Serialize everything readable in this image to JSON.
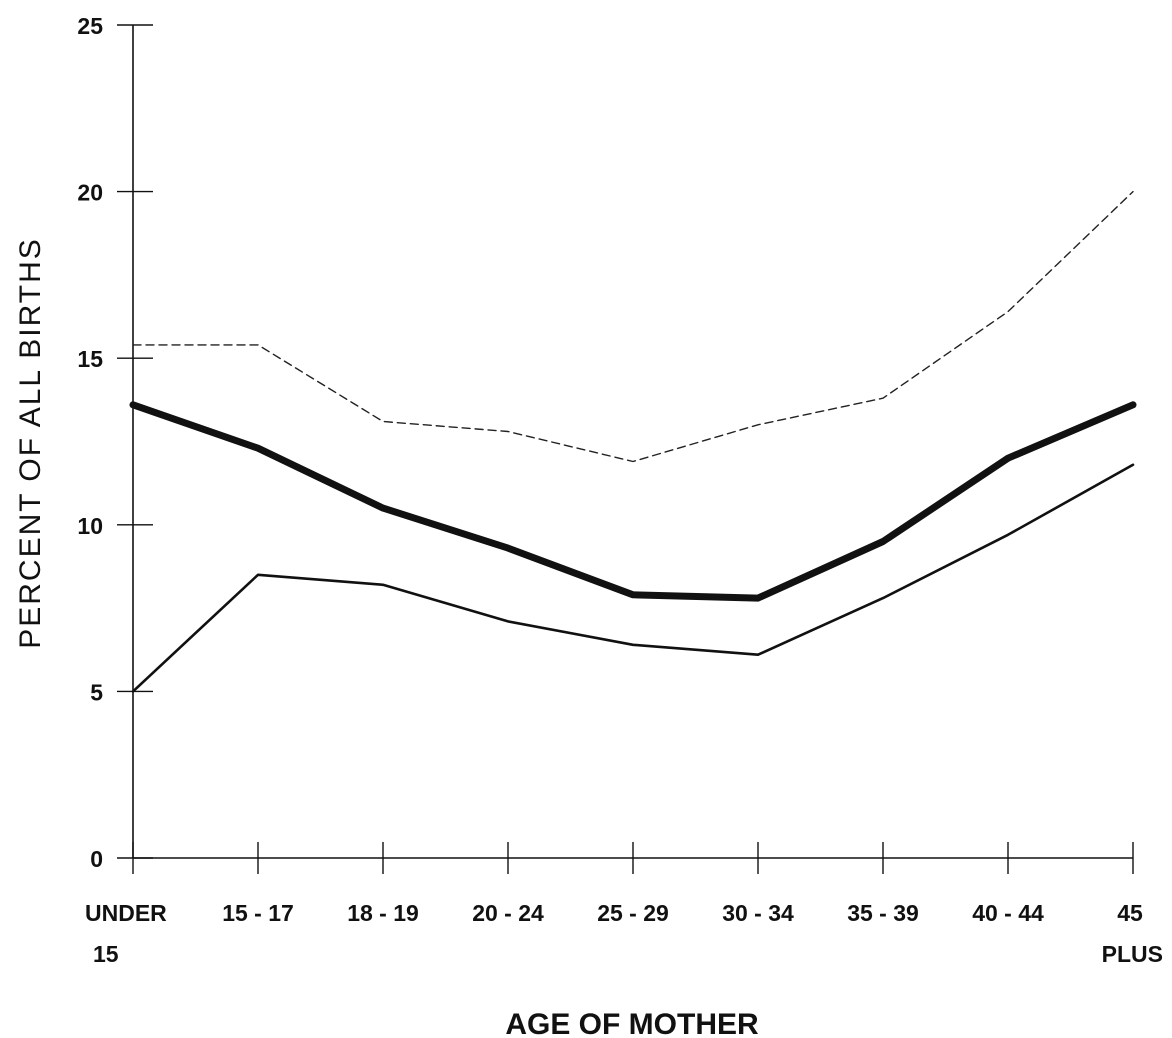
{
  "chart_data": {
    "type": "line",
    "title": "",
    "xlabel": "AGE OF MOTHER",
    "ylabel": "PERCENT OF ALL BIRTHS",
    "categories": [
      [
        "UNDER",
        "15"
      ],
      [
        "15 - 17"
      ],
      [
        "18 - 19"
      ],
      [
        "20 - 24"
      ],
      [
        "25 - 29"
      ],
      [
        "30 - 34"
      ],
      [
        "35 - 39"
      ],
      [
        "40 - 44"
      ],
      [
        "45",
        "PLUS"
      ]
    ],
    "ylim": [
      0,
      25
    ],
    "yticks": [
      0,
      5,
      10,
      15,
      20,
      25
    ],
    "grid": false,
    "legend": "none",
    "series": [
      {
        "style": "dashed",
        "color": "#222222",
        "values": [
          15.4,
          15.4,
          13.1,
          12.8,
          11.9,
          13.0,
          13.8,
          16.4,
          20.0
        ]
      },
      {
        "style": "thick",
        "color": "#111111",
        "values": [
          13.6,
          12.3,
          10.5,
          9.3,
          7.9,
          7.8,
          9.5,
          12.0,
          13.6
        ]
      },
      {
        "style": "solid",
        "color": "#111111",
        "values": [
          5.0,
          8.5,
          8.2,
          7.1,
          6.4,
          6.1,
          7.8,
          9.7,
          11.8
        ]
      }
    ]
  }
}
